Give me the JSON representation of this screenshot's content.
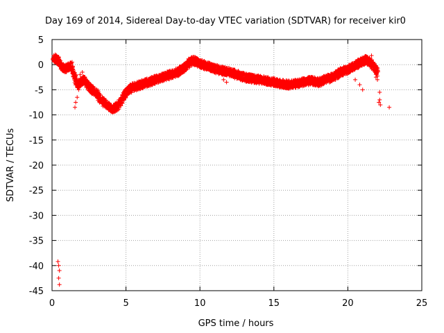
{
  "chart_data": {
    "type": "scatter",
    "title": "Day 169 of 2014, Sidereal Day-to-day VTEC variation (SDTVAR) for receiver kir0",
    "xlabel": "GPS time / hours",
    "ylabel": "SDTVAR / TECUs",
    "xlim": [
      0,
      25
    ],
    "ylim": [
      -45,
      5
    ],
    "xticks": [
      0,
      5,
      10,
      15,
      20,
      25
    ],
    "yticks": [
      5,
      0,
      -5,
      -10,
      -15,
      -20,
      -25,
      -30,
      -35,
      -40,
      -45
    ],
    "grid": true,
    "marker": "+",
    "color": "#ff0000",
    "series": [
      {
        "name": "SDTVAR",
        "trace": [
          [
            0.1,
            1.5
          ],
          [
            0.3,
            1.0
          ],
          [
            0.5,
            0.5
          ],
          [
            0.7,
            -0.5
          ],
          [
            0.9,
            -0.8
          ],
          [
            1.1,
            -0.5
          ],
          [
            1.3,
            -0.3
          ],
          [
            1.5,
            -2.0
          ],
          [
            1.7,
            -4.0
          ],
          [
            1.9,
            -3.5
          ],
          [
            2.1,
            -3.0
          ],
          [
            2.3,
            -3.5
          ],
          [
            2.5,
            -4.5
          ],
          [
            2.7,
            -5.0
          ],
          [
            2.9,
            -5.5
          ],
          [
            3.1,
            -6.0
          ],
          [
            3.3,
            -7.0
          ],
          [
            3.5,
            -7.5
          ],
          [
            3.7,
            -8.0
          ],
          [
            3.9,
            -8.5
          ],
          [
            4.1,
            -8.8
          ],
          [
            4.3,
            -8.5
          ],
          [
            4.5,
            -8.0
          ],
          [
            4.7,
            -7.0
          ],
          [
            4.9,
            -6.0
          ],
          [
            5.2,
            -5.0
          ],
          [
            5.5,
            -4.5
          ],
          [
            6.0,
            -4.0
          ],
          [
            6.5,
            -3.5
          ],
          [
            7.0,
            -3.0
          ],
          [
            7.5,
            -2.5
          ],
          [
            8.0,
            -2.0
          ],
          [
            8.5,
            -1.5
          ],
          [
            9.0,
            -0.5
          ],
          [
            9.3,
            0.5
          ],
          [
            9.6,
            0.8
          ],
          [
            10.0,
            0.2
          ],
          [
            10.5,
            -0.3
          ],
          [
            11.0,
            -0.8
          ],
          [
            11.5,
            -1.2
          ],
          [
            12.0,
            -1.5
          ],
          [
            12.5,
            -2.0
          ],
          [
            13.0,
            -2.5
          ],
          [
            13.5,
            -2.8
          ],
          [
            14.0,
            -3.0
          ],
          [
            14.5,
            -3.2
          ],
          [
            15.0,
            -3.5
          ],
          [
            15.5,
            -3.8
          ],
          [
            16.0,
            -4.0
          ],
          [
            16.5,
            -3.8
          ],
          [
            17.0,
            -3.5
          ],
          [
            17.5,
            -3.2
          ],
          [
            18.0,
            -3.5
          ],
          [
            18.5,
            -3.0
          ],
          [
            19.0,
            -2.5
          ],
          [
            19.5,
            -1.5
          ],
          [
            20.0,
            -1.0
          ],
          [
            20.3,
            -0.5
          ],
          [
            20.6,
            0.0
          ],
          [
            20.9,
            0.5
          ],
          [
            21.2,
            1.0
          ],
          [
            21.5,
            0.5
          ],
          [
            21.8,
            -0.5
          ],
          [
            22.0,
            -1.5
          ]
        ],
        "points": [
          [
            0.4,
            -39.2
          ],
          [
            0.45,
            -40.0
          ],
          [
            0.5,
            -41.0
          ],
          [
            0.45,
            -42.5
          ],
          [
            0.5,
            -43.8
          ],
          [
            0.15,
            1.5
          ],
          [
            0.35,
            1.0
          ],
          [
            0.6,
            0.3
          ],
          [
            1.55,
            -8.5
          ],
          [
            1.6,
            -7.5
          ],
          [
            1.7,
            -6.5
          ],
          [
            1.8,
            -5.0
          ],
          [
            1.9,
            -2.0
          ],
          [
            2.05,
            -1.5
          ],
          [
            2.1,
            -2.8
          ],
          [
            11.6,
            -3.0
          ],
          [
            11.8,
            -3.5
          ],
          [
            12.3,
            -1.0
          ],
          [
            20.5,
            -3.0
          ],
          [
            20.8,
            -4.0
          ],
          [
            21.0,
            -5.0
          ],
          [
            21.6,
            1.8
          ],
          [
            21.9,
            -2.5
          ],
          [
            22.0,
            -3.0
          ],
          [
            22.15,
            -5.5
          ],
          [
            22.1,
            -7.5
          ],
          [
            22.2,
            -8.0
          ],
          [
            22.15,
            -7.0
          ],
          [
            22.8,
            -8.5
          ]
        ]
      }
    ]
  }
}
